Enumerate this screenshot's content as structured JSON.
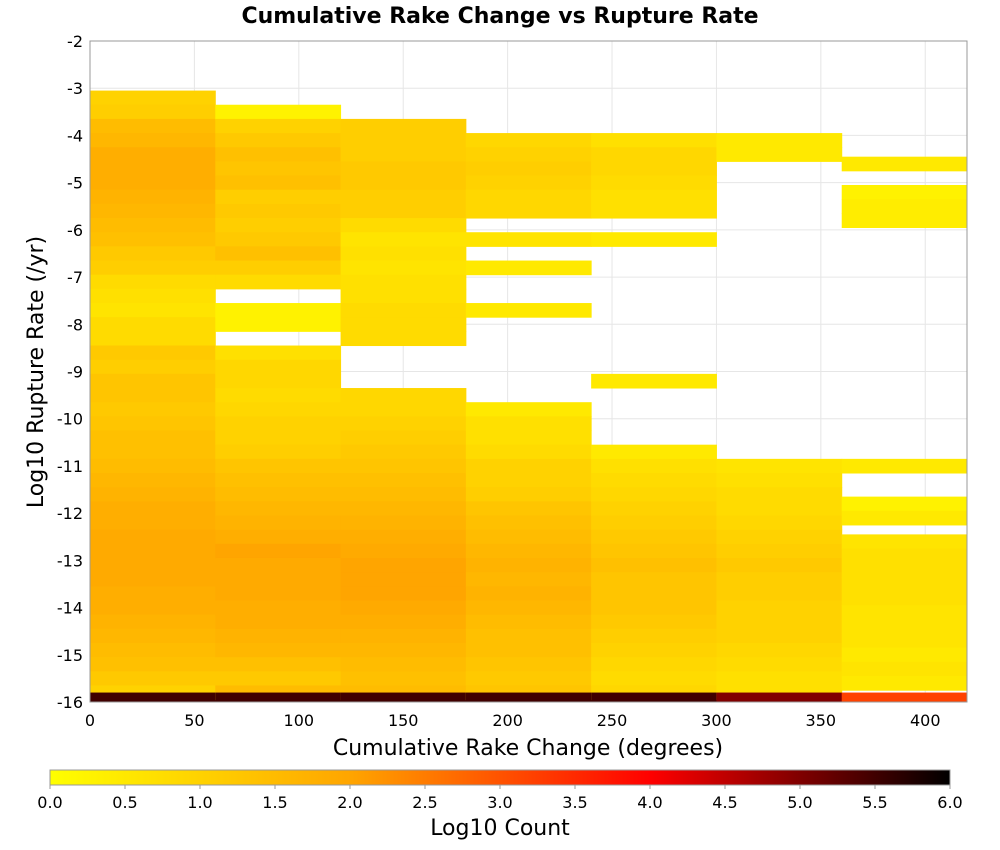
{
  "chart_data": {
    "type": "heatmap",
    "title": "Cumulative Rake Change vs Rupture Rate",
    "xlabel": "Cumulative Rake Change (degrees)",
    "ylabel": "Log10 Rupture Rate (/yr)",
    "xlim": [
      0,
      420
    ],
    "ylim": [
      -16,
      -2
    ],
    "x_ticks": [
      0,
      50,
      100,
      150,
      200,
      250,
      300,
      350,
      400
    ],
    "y_ticks": [
      -2,
      -3,
      -4,
      -5,
      -6,
      -7,
      -8,
      -9,
      -10,
      -11,
      -12,
      -13,
      -14,
      -15,
      -16
    ],
    "grid": true,
    "bin_width_x": 60,
    "bin_height_y": 0.3,
    "colorbar": {
      "label": "Log10 Count",
      "range": [
        0.0,
        6.0
      ],
      "ticks": [
        0.0,
        0.5,
        1.0,
        1.5,
        2.0,
        2.5,
        3.0,
        3.5,
        4.0,
        4.5,
        5.0,
        5.5,
        6.0
      ],
      "colors": [
        "#ffff00",
        "#ffa500",
        "#ff0000",
        "#000000"
      ],
      "placement": "bottom"
    },
    "cells": [
      {
        "x": [
          0,
          60
        ],
        "y_bins": [
          [
            -3.2,
            1.0
          ],
          [
            -3.5,
            1.1
          ],
          [
            -3.8,
            1.5
          ],
          [
            -4.1,
            1.6
          ],
          [
            -4.4,
            1.8
          ],
          [
            -4.7,
            1.8
          ],
          [
            -5.0,
            1.8
          ],
          [
            -5.3,
            1.7
          ],
          [
            -5.6,
            1.6
          ],
          [
            -5.9,
            1.5
          ],
          [
            -6.2,
            1.4
          ],
          [
            -6.5,
            1.2
          ],
          [
            -6.8,
            1.1
          ],
          [
            -7.1,
            0.8
          ],
          [
            -7.4,
            0.7
          ],
          [
            -7.7,
            0.6
          ],
          [
            -8.0,
            0.8
          ],
          [
            -8.3,
            0.8
          ],
          [
            -8.6,
            1.2
          ],
          [
            -8.9,
            1.1
          ],
          [
            -9.2,
            1.3
          ],
          [
            -9.5,
            1.3
          ],
          [
            -9.8,
            1.2
          ],
          [
            -10.1,
            1.3
          ],
          [
            -10.4,
            1.4
          ],
          [
            -10.7,
            1.4
          ],
          [
            -11.0,
            1.5
          ],
          [
            -11.3,
            1.6
          ],
          [
            -11.6,
            1.7
          ],
          [
            -11.9,
            1.8
          ],
          [
            -12.2,
            1.8
          ],
          [
            -12.5,
            1.9
          ],
          [
            -12.8,
            1.9
          ],
          [
            -13.1,
            1.9
          ],
          [
            -13.4,
            1.9
          ],
          [
            -13.7,
            1.8
          ],
          [
            -14.0,
            1.8
          ],
          [
            -14.3,
            1.7
          ],
          [
            -14.6,
            1.6
          ],
          [
            -14.9,
            1.5
          ],
          [
            -15.2,
            1.4
          ],
          [
            -15.5,
            1.2
          ],
          [
            -15.8,
            1.0
          ],
          [
            -15.95,
            5.5
          ]
        ]
      },
      {
        "x": [
          60,
          120
        ],
        "y_bins": [
          [
            -3.5,
            0.3
          ],
          [
            -3.8,
            1.0
          ],
          [
            -4.1,
            1.2
          ],
          [
            -4.4,
            1.4
          ],
          [
            -4.7,
            1.3
          ],
          [
            -5.0,
            1.4
          ],
          [
            -5.3,
            1.1
          ],
          [
            -5.6,
            1.2
          ],
          [
            -5.9,
            1.1
          ],
          [
            -6.2,
            1.2
          ],
          [
            -6.5,
            1.4
          ],
          [
            -6.8,
            1.1
          ],
          [
            -7.1,
            0.8
          ],
          [
            -7.7,
            0.3
          ],
          [
            -8.0,
            0.3
          ],
          [
            -8.6,
            0.7
          ],
          [
            -8.9,
            0.9
          ],
          [
            -9.2,
            0.9
          ],
          [
            -9.5,
            0.8
          ],
          [
            -9.8,
            0.9
          ],
          [
            -10.1,
            1.0
          ],
          [
            -10.4,
            1.0
          ],
          [
            -10.7,
            1.1
          ],
          [
            -11.0,
            1.3
          ],
          [
            -11.3,
            1.4
          ],
          [
            -11.6,
            1.5
          ],
          [
            -11.9,
            1.6
          ],
          [
            -12.2,
            1.7
          ],
          [
            -12.5,
            1.8
          ],
          [
            -12.8,
            2.0
          ],
          [
            -13.1,
            1.9
          ],
          [
            -13.4,
            1.9
          ],
          [
            -13.7,
            1.9
          ],
          [
            -14.0,
            1.8
          ],
          [
            -14.3,
            1.8
          ],
          [
            -14.6,
            1.7
          ],
          [
            -14.9,
            1.6
          ],
          [
            -15.2,
            1.4
          ],
          [
            -15.5,
            1.2
          ],
          [
            -15.8,
            1.5
          ],
          [
            -15.95,
            5.5
          ]
        ]
      },
      {
        "x": [
          120,
          180
        ],
        "y_bins": [
          [
            -3.8,
            1.1
          ],
          [
            -4.1,
            1.1
          ],
          [
            -4.4,
            1.1
          ],
          [
            -4.7,
            1.2
          ],
          [
            -5.0,
            1.2
          ],
          [
            -5.3,
            1.1
          ],
          [
            -5.6,
            1.1
          ],
          [
            -5.9,
            0.8
          ],
          [
            -6.2,
            0.6
          ],
          [
            -6.5,
            0.7
          ],
          [
            -6.8,
            0.6
          ],
          [
            -7.1,
            0.7
          ],
          [
            -7.4,
            0.7
          ],
          [
            -7.7,
            0.8
          ],
          [
            -8.0,
            0.8
          ],
          [
            -8.3,
            0.8
          ],
          [
            -9.5,
            0.9
          ],
          [
            -9.8,
            0.9
          ],
          [
            -10.1,
            1.0
          ],
          [
            -10.4,
            1.1
          ],
          [
            -10.7,
            1.2
          ],
          [
            -11.0,
            1.3
          ],
          [
            -11.3,
            1.4
          ],
          [
            -11.6,
            1.5
          ],
          [
            -11.9,
            1.6
          ],
          [
            -12.2,
            1.7
          ],
          [
            -12.5,
            1.8
          ],
          [
            -12.8,
            1.9
          ],
          [
            -13.1,
            2.0
          ],
          [
            -13.4,
            2.0
          ],
          [
            -13.7,
            2.0
          ],
          [
            -14.0,
            1.9
          ],
          [
            -14.3,
            1.8
          ],
          [
            -14.6,
            1.7
          ],
          [
            -14.9,
            1.6
          ],
          [
            -15.2,
            1.5
          ],
          [
            -15.5,
            1.4
          ],
          [
            -15.8,
            1.5
          ],
          [
            -15.95,
            5.5
          ]
        ]
      },
      {
        "x": [
          180,
          240
        ],
        "y_bins": [
          [
            -4.1,
            0.9
          ],
          [
            -4.4,
            1.0
          ],
          [
            -4.7,
            1.1
          ],
          [
            -5.0,
            1.0
          ],
          [
            -5.3,
            0.9
          ],
          [
            -5.6,
            0.9
          ],
          [
            -6.2,
            0.6
          ],
          [
            -6.8,
            0.5
          ],
          [
            -7.7,
            0.5
          ],
          [
            -9.8,
            0.5
          ],
          [
            -10.1,
            0.7
          ],
          [
            -10.4,
            0.7
          ],
          [
            -10.7,
            0.8
          ],
          [
            -11.0,
            1.0
          ],
          [
            -11.3,
            1.0
          ],
          [
            -11.6,
            1.1
          ],
          [
            -11.9,
            1.3
          ],
          [
            -12.2,
            1.4
          ],
          [
            -12.5,
            1.5
          ],
          [
            -12.8,
            1.6
          ],
          [
            -13.1,
            1.7
          ],
          [
            -13.4,
            1.6
          ],
          [
            -13.7,
            1.7
          ],
          [
            -14.0,
            1.6
          ],
          [
            -14.3,
            1.5
          ],
          [
            -14.6,
            1.4
          ],
          [
            -14.9,
            1.4
          ],
          [
            -15.2,
            1.3
          ],
          [
            -15.5,
            1.2
          ],
          [
            -15.8,
            1.3
          ],
          [
            -15.95,
            5.5
          ]
        ]
      },
      {
        "x": [
          240,
          300
        ],
        "y_bins": [
          [
            -4.1,
            0.7
          ],
          [
            -4.4,
            0.9
          ],
          [
            -4.7,
            0.9
          ],
          [
            -5.0,
            0.8
          ],
          [
            -5.3,
            0.7
          ],
          [
            -5.6,
            0.7
          ],
          [
            -6.2,
            0.5
          ],
          [
            -9.2,
            0.5
          ],
          [
            -10.7,
            0.5
          ],
          [
            -11.0,
            0.7
          ],
          [
            -11.3,
            0.8
          ],
          [
            -11.6,
            0.9
          ],
          [
            -11.9,
            1.0
          ],
          [
            -12.2,
            1.1
          ],
          [
            -12.5,
            1.2
          ],
          [
            -12.8,
            1.3
          ],
          [
            -13.1,
            1.4
          ],
          [
            -13.4,
            1.3
          ],
          [
            -13.7,
            1.3
          ],
          [
            -14.0,
            1.3
          ],
          [
            -14.3,
            1.2
          ],
          [
            -14.6,
            1.1
          ],
          [
            -14.9,
            1.0
          ],
          [
            -15.2,
            0.9
          ],
          [
            -15.5,
            0.8
          ],
          [
            -15.8,
            0.9
          ],
          [
            -15.95,
            5.5
          ]
        ]
      },
      {
        "x": [
          300,
          360
        ],
        "y_bins": [
          [
            -4.1,
            0.5
          ],
          [
            -4.4,
            0.5
          ],
          [
            -11.0,
            0.6
          ],
          [
            -11.3,
            0.7
          ],
          [
            -11.6,
            0.8
          ],
          [
            -11.9,
            0.8
          ],
          [
            -12.2,
            0.9
          ],
          [
            -12.5,
            1.0
          ],
          [
            -12.8,
            1.1
          ],
          [
            -13.1,
            1.2
          ],
          [
            -13.4,
            1.1
          ],
          [
            -13.7,
            1.1
          ],
          [
            -14.0,
            1.0
          ],
          [
            -14.3,
            1.0
          ],
          [
            -14.6,
            1.0
          ],
          [
            -14.9,
            0.9
          ],
          [
            -15.2,
            0.8
          ],
          [
            -15.5,
            0.7
          ],
          [
            -15.8,
            0.7
          ],
          [
            -15.95,
            5.0
          ]
        ]
      },
      {
        "x": [
          360,
          420
        ],
        "y_bins": [
          [
            -4.6,
            0.5
          ],
          [
            -5.2,
            0.3
          ],
          [
            -5.5,
            0.4
          ],
          [
            -5.8,
            0.4
          ],
          [
            -11.0,
            0.5
          ],
          [
            -11.8,
            0.3
          ],
          [
            -12.1,
            0.5
          ],
          [
            -12.6,
            0.6
          ],
          [
            -12.9,
            0.7
          ],
          [
            -13.2,
            0.7
          ],
          [
            -13.5,
            0.7
          ],
          [
            -13.8,
            0.7
          ],
          [
            -14.1,
            0.6
          ],
          [
            -14.4,
            0.6
          ],
          [
            -14.7,
            0.6
          ],
          [
            -15.0,
            0.5
          ],
          [
            -15.3,
            0.6
          ],
          [
            -15.6,
            0.5
          ],
          [
            -15.95,
            3.2
          ]
        ]
      }
    ]
  }
}
